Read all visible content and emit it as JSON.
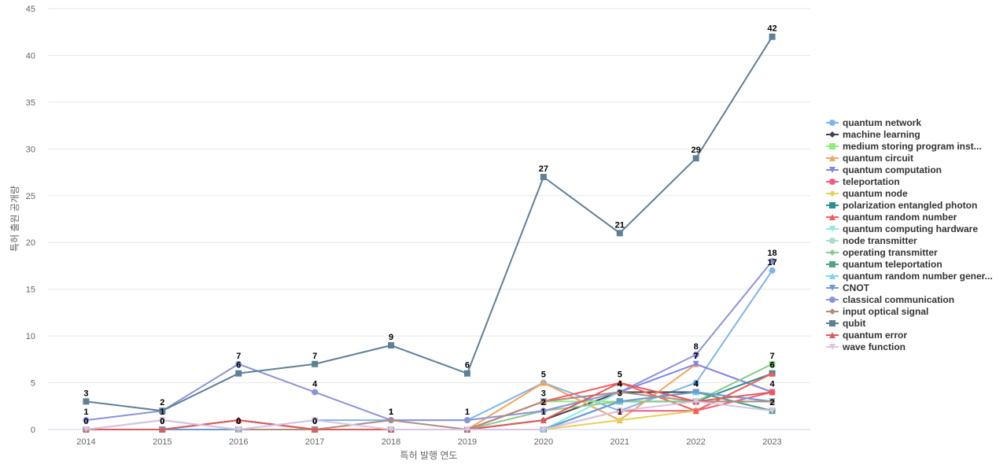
{
  "chart_data": {
    "type": "line",
    "title": "",
    "xlabel": "특허 발행 연도",
    "ylabel": "특허 출원 공개량",
    "ylim": [
      0,
      45
    ],
    "yticks": [
      0,
      5,
      10,
      15,
      20,
      25,
      30,
      35,
      40,
      45
    ],
    "categories": [
      "2014",
      "2015",
      "2016",
      "2017",
      "2018",
      "2019",
      "2020",
      "2021",
      "2022",
      "2023"
    ],
    "legend_position": "right",
    "series": [
      {
        "name": "quantum network",
        "color": "#7cb5ec",
        "marker": "circle",
        "values": [
          0,
          0,
          0,
          1,
          1,
          1,
          5,
          2,
          5,
          17
        ]
      },
      {
        "name": "machine learning",
        "color": "#434348",
        "marker": "diamond",
        "values": [
          0,
          0,
          1,
          0,
          0,
          0,
          1,
          4,
          4,
          2
        ]
      },
      {
        "name": "medium storing program inst...",
        "color": "#90ed7d",
        "marker": "square",
        "values": [
          0,
          0,
          0,
          0,
          0,
          0,
          3,
          3,
          3,
          7
        ]
      },
      {
        "name": "quantum circuit",
        "color": "#f7a35c",
        "marker": "triangle",
        "values": [
          0,
          0,
          0,
          0,
          0,
          0,
          5,
          1,
          7,
          4
        ]
      },
      {
        "name": "quantum computation",
        "color": "#8085e9",
        "marker": "triangle-down",
        "values": [
          0,
          0,
          0,
          0,
          0,
          0,
          3,
          4,
          7,
          4
        ]
      },
      {
        "name": "teleportation",
        "color": "#f15c80",
        "marker": "circle",
        "values": [
          0,
          0,
          0,
          0,
          0,
          0,
          0,
          2,
          2,
          4
        ]
      },
      {
        "name": "quantum node",
        "color": "#e4d354",
        "marker": "diamond",
        "values": [
          0,
          0,
          0,
          0,
          0,
          0,
          0,
          1,
          2,
          6
        ]
      },
      {
        "name": "polarization entangled photon",
        "color": "#2b908f",
        "marker": "square",
        "values": [
          0,
          0,
          0,
          0,
          0,
          0,
          0,
          3,
          3,
          6
        ]
      },
      {
        "name": "quantum random number",
        "color": "#f45b5b",
        "marker": "triangle",
        "values": [
          0,
          0,
          0,
          0,
          0,
          0,
          3,
          5,
          2,
          6
        ]
      },
      {
        "name": "quantum computing hardware",
        "color": "#91e8e1",
        "marker": "triangle-down",
        "values": [
          0,
          0,
          0,
          0,
          0,
          0,
          0,
          4,
          3,
          3
        ]
      },
      {
        "name": "node transmitter",
        "color": "#a8dfc9",
        "marker": "circle",
        "values": [
          0,
          0,
          0,
          0,
          0,
          0,
          0,
          3,
          4,
          2
        ]
      },
      {
        "name": "operating transmitter",
        "color": "#8fc98f",
        "marker": "diamond",
        "values": [
          0,
          0,
          0,
          0,
          0,
          0,
          2,
          3,
          3,
          7
        ]
      },
      {
        "name": "quantum teleportation",
        "color": "#4ea58c",
        "marker": "square",
        "values": [
          0,
          0,
          0,
          0,
          0,
          0,
          0,
          3,
          4,
          2
        ]
      },
      {
        "name": "quantum random number gener...",
        "color": "#7fd4ee",
        "marker": "triangle",
        "values": [
          0,
          0,
          0,
          0,
          0,
          0,
          0,
          3,
          4,
          3
        ]
      },
      {
        "name": "CNOT",
        "color": "#6b9bd2",
        "marker": "triangle-down",
        "values": [
          0,
          0,
          0,
          0,
          0,
          0,
          0,
          3,
          4,
          3
        ]
      },
      {
        "name": "classical communication",
        "color": "#8b93d8",
        "marker": "circle",
        "values": [
          1,
          2,
          7,
          4,
          1,
          1,
          2,
          4,
          8,
          18
        ]
      },
      {
        "name": "input optical signal",
        "color": "#b38b7d",
        "marker": "diamond",
        "values": [
          0,
          1,
          0,
          0,
          1,
          0,
          3,
          4,
          3,
          3
        ]
      },
      {
        "name": "qubit",
        "color": "#5f7f96",
        "marker": "square",
        "values": [
          3,
          2,
          6,
          7,
          9,
          6,
          27,
          21,
          29,
          42
        ]
      },
      {
        "name": "quantum error",
        "color": "#e25a5a",
        "marker": "triangle",
        "values": [
          0,
          0,
          1,
          0,
          0,
          0,
          1,
          5,
          3,
          4
        ]
      },
      {
        "name": "wave function",
        "color": "#d9c4e6",
        "marker": "triangle-down",
        "values": [
          0,
          1,
          0,
          1,
          0,
          0,
          0,
          2,
          3,
          2
        ]
      }
    ],
    "data_labels": [
      {
        "series": "qubit",
        "points": [
          0,
          1,
          2,
          3,
          4,
          5,
          6,
          7,
          8,
          9
        ]
      },
      {
        "series": "classical communication",
        "points": [
          0,
          2,
          3,
          4,
          8,
          9
        ]
      },
      {
        "series": "quantum network",
        "points": [
          1,
          4,
          5,
          6,
          9
        ]
      },
      {
        "series": "machine learning",
        "points": [
          1,
          3,
          6,
          7
        ]
      },
      {
        "series": "quantum random number",
        "points": [
          7,
          9
        ]
      },
      {
        "series": "quantum circuit",
        "points": [
          7,
          8,
          9
        ]
      },
      {
        "series": "quantum computation",
        "points": [
          7,
          8
        ]
      },
      {
        "series": "node transmitter",
        "points": [
          8
        ]
      },
      {
        "series": "operating transmitter",
        "points": [
          6,
          9
        ]
      },
      {
        "series": "medium storing program inst...",
        "points": [
          2,
          7
        ]
      },
      {
        "series": "quantum teleportation",
        "points": [
          8,
          9
        ]
      },
      {
        "series": "input optical signal",
        "points": [
          2,
          3,
          4,
          6
        ]
      },
      {
        "series": "polarization entangled photon",
        "points": [
          9
        ]
      },
      {
        "series": "wave function",
        "points": [
          1
        ]
      },
      {
        "series": "quantum computing hardware",
        "points": [
          0
        ]
      }
    ]
  }
}
